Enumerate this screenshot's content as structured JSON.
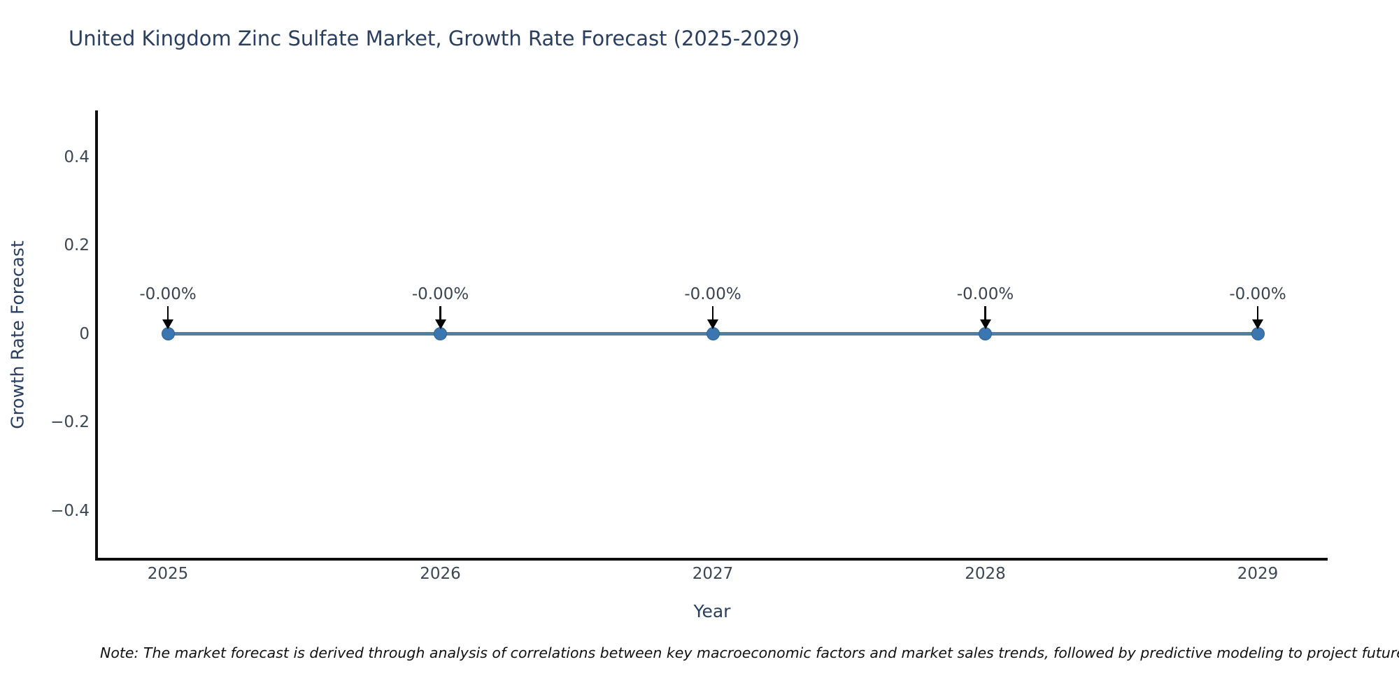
{
  "chart_data": {
    "type": "line",
    "title": "United Kingdom Zinc Sulfate Market, Growth Rate Forecast (2025-2029)",
    "xlabel": "Year",
    "ylabel": "Growth Rate Forecast",
    "x": [
      2025,
      2026,
      2027,
      2028,
      2029
    ],
    "categories": [
      "2025",
      "2026",
      "2027",
      "2028",
      "2029"
    ],
    "series": [
      {
        "name": "Growth Rate Forecast",
        "values": [
          0,
          0,
          0,
          0,
          0
        ],
        "point_labels": [
          "-0.00%",
          "-0.00%",
          "-0.00%",
          "-0.00%",
          "-0.00%"
        ]
      }
    ],
    "yticks": [
      0.4,
      0.2,
      0,
      -0.2,
      -0.4
    ],
    "ytick_labels": [
      "0.4",
      "0.2",
      "0",
      "−0.2",
      "−0.4"
    ],
    "ylim": [
      -0.51,
      0.51
    ],
    "grid": false,
    "legend_position": "none",
    "line_color": "#4d7ea8",
    "marker_color": "#3c76b0",
    "annotation_arrow_color": "#000000"
  },
  "note": "Note: The market forecast is derived through analysis of correlations between key macroeconomic factors and market sales trends, followed by predictive modeling to project future sales performance."
}
